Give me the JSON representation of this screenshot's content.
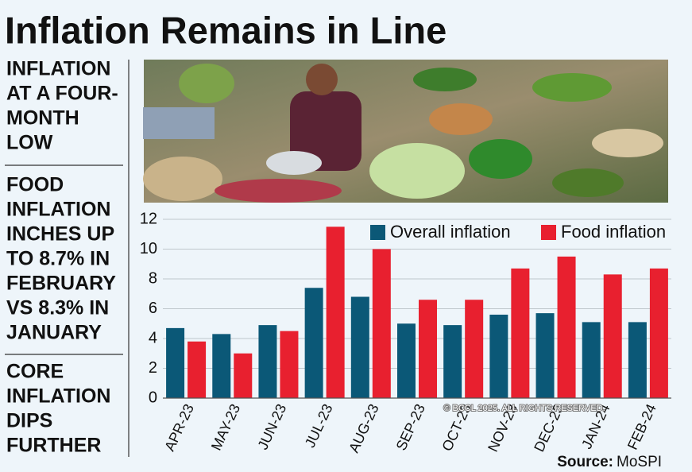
{
  "headline": "Inflation Remains in Line",
  "sidebar": [
    [
      "INFLATION",
      "AT A FOUR-",
      "MONTH",
      "LOW"
    ],
    [
      "FOOD",
      "INFLATION",
      "INCHES UP",
      "TO 8.7% IN",
      "FEBRUARY",
      "VS 8.3% IN",
      "JANUARY"
    ],
    [
      "CORE",
      "INFLATION",
      "DIPS",
      "FURTHER"
    ]
  ],
  "watermark": "© BCCL 2025. ALL RIGHTS RESERVED.",
  "source_label": "Source:",
  "source": "MoSPI",
  "chart_data": {
    "type": "bar",
    "categories": [
      "APR-23",
      "MAY-23",
      "JUN-23",
      "JUL-23",
      "AUG-23",
      "SEP-23",
      "OCT-23",
      "NOV-23",
      "DEC-23",
      "JAN-24",
      "FEB-24"
    ],
    "series": [
      {
        "name": "Overall inflation",
        "color": "#0b5877",
        "values": [
          4.7,
          4.3,
          4.9,
          7.4,
          6.8,
          5.0,
          4.9,
          5.6,
          5.7,
          5.1,
          5.1
        ]
      },
      {
        "name": "Food inflation",
        "color": "#e8202f",
        "values": [
          3.8,
          3.0,
          4.5,
          11.5,
          10.0,
          6.6,
          6.6,
          8.7,
          9.5,
          8.3,
          8.7
        ]
      }
    ],
    "ylim": [
      0,
      12
    ],
    "yticks": [
      0,
      2,
      4,
      6,
      8,
      10,
      12
    ],
    "grid": true,
    "legend": "top-right"
  }
}
